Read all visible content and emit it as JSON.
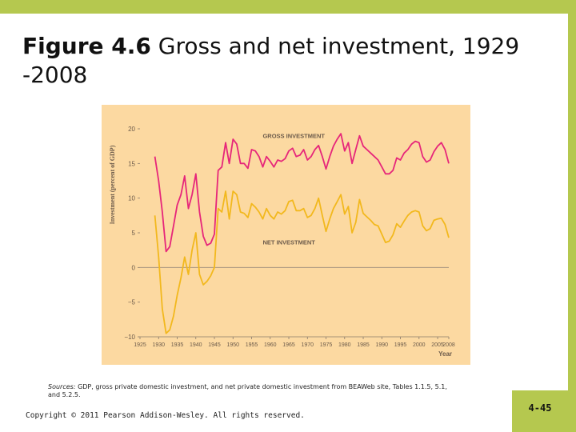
{
  "slide": {
    "title_bold": "Figure 4.6",
    "title_rest": "Gross and net investment, 1929 -2008",
    "sources_label": "Sources:",
    "sources_text": "GDP, gross private domestic investment, and net private domestic investment from BEAWeb site, Tables 1.1.5, 5.1, and 5.2.5.",
    "copyright": "Copyright © 2011 Pearson Addison-Wesley. All rights reserved.",
    "page_number": "4-45"
  },
  "colors": {
    "accent_bar": "#b5c84f",
    "figure_bg": "#fcd9a1",
    "gross_line": "#e6267a",
    "net_line": "#f2b81d"
  },
  "chart_data": {
    "type": "line",
    "ylabel": "Investment (percent of GDP)",
    "xlabel": "Year",
    "xlim": [
      1925,
      2008
    ],
    "ylim": [
      -10,
      20
    ],
    "xticks": [
      1925,
      1930,
      1935,
      1940,
      1945,
      1950,
      1955,
      1960,
      1965,
      1970,
      1975,
      1980,
      1985,
      1990,
      1995,
      2000,
      2005,
      2008
    ],
    "yticks": [
      -10,
      -5,
      0,
      5,
      10,
      15,
      20
    ],
    "x": [
      1929,
      1930,
      1931,
      1932,
      1933,
      1934,
      1935,
      1936,
      1937,
      1938,
      1939,
      1940,
      1941,
      1942,
      1943,
      1944,
      1945,
      1946,
      1947,
      1948,
      1949,
      1950,
      1951,
      1952,
      1953,
      1954,
      1955,
      1956,
      1957,
      1958,
      1959,
      1960,
      1961,
      1962,
      1963,
      1964,
      1965,
      1966,
      1967,
      1968,
      1969,
      1970,
      1971,
      1972,
      1973,
      1974,
      1975,
      1976,
      1977,
      1978,
      1979,
      1980,
      1981,
      1982,
      1983,
      1984,
      1985,
      1986,
      1987,
      1988,
      1989,
      1990,
      1991,
      1992,
      1993,
      1994,
      1995,
      1996,
      1997,
      1998,
      1999,
      2000,
      2001,
      2002,
      2003,
      2004,
      2005,
      2006,
      2007,
      2008
    ],
    "series": [
      {
        "name": "GROSS INVESTMENT",
        "values": [
          16,
          12.5,
          8,
          2.3,
          3,
          6,
          9,
          10.5,
          13.2,
          8.5,
          10.5,
          13.5,
          8,
          4.5,
          3.2,
          3.5,
          4.8,
          14,
          14.5,
          18,
          15,
          18.5,
          17.8,
          15,
          15,
          14.3,
          17,
          16.8,
          16,
          14.5,
          16,
          15.3,
          14.5,
          15.5,
          15.3,
          15.7,
          16.8,
          17.2,
          16,
          16.2,
          17,
          15.5,
          16,
          17,
          17.6,
          16,
          14.2,
          16,
          17.5,
          18.5,
          19.3,
          16.8,
          18,
          15,
          17,
          19,
          17.5,
          17,
          16.5,
          16,
          15.5,
          14.5,
          13.5,
          13.5,
          14,
          15.8,
          15.5,
          16.5,
          17,
          17.8,
          18.2,
          18,
          16,
          15.2,
          15.5,
          16.7,
          17.5,
          18,
          17,
          15
        ]
      },
      {
        "name": "NET INVESTMENT",
        "values": [
          7.5,
          1.5,
          -6,
          -9.5,
          -9,
          -7,
          -4,
          -1.5,
          1.5,
          -1,
          2.5,
          5,
          -1,
          -2.5,
          -2,
          -1.2,
          0,
          8.5,
          8,
          11,
          7,
          11,
          10.5,
          8,
          7.8,
          7.2,
          9.2,
          8.7,
          8,
          7,
          8.5,
          7.5,
          7,
          8,
          7.7,
          8.2,
          9.5,
          9.7,
          8.2,
          8.2,
          8.5,
          7.2,
          7.5,
          8.5,
          10,
          7.5,
          5.2,
          7,
          8.5,
          9.5,
          10.5,
          7.7,
          8.8,
          5,
          6.5,
          9.8,
          7.8,
          7.3,
          6.8,
          6.2,
          6,
          4.8,
          3.6,
          3.8,
          4.7,
          6.3,
          5.8,
          6.7,
          7.5,
          8,
          8.2,
          8,
          6,
          5.3,
          5.6,
          6.8,
          7,
          7.1,
          6.2,
          4.3
        ]
      }
    ]
  }
}
